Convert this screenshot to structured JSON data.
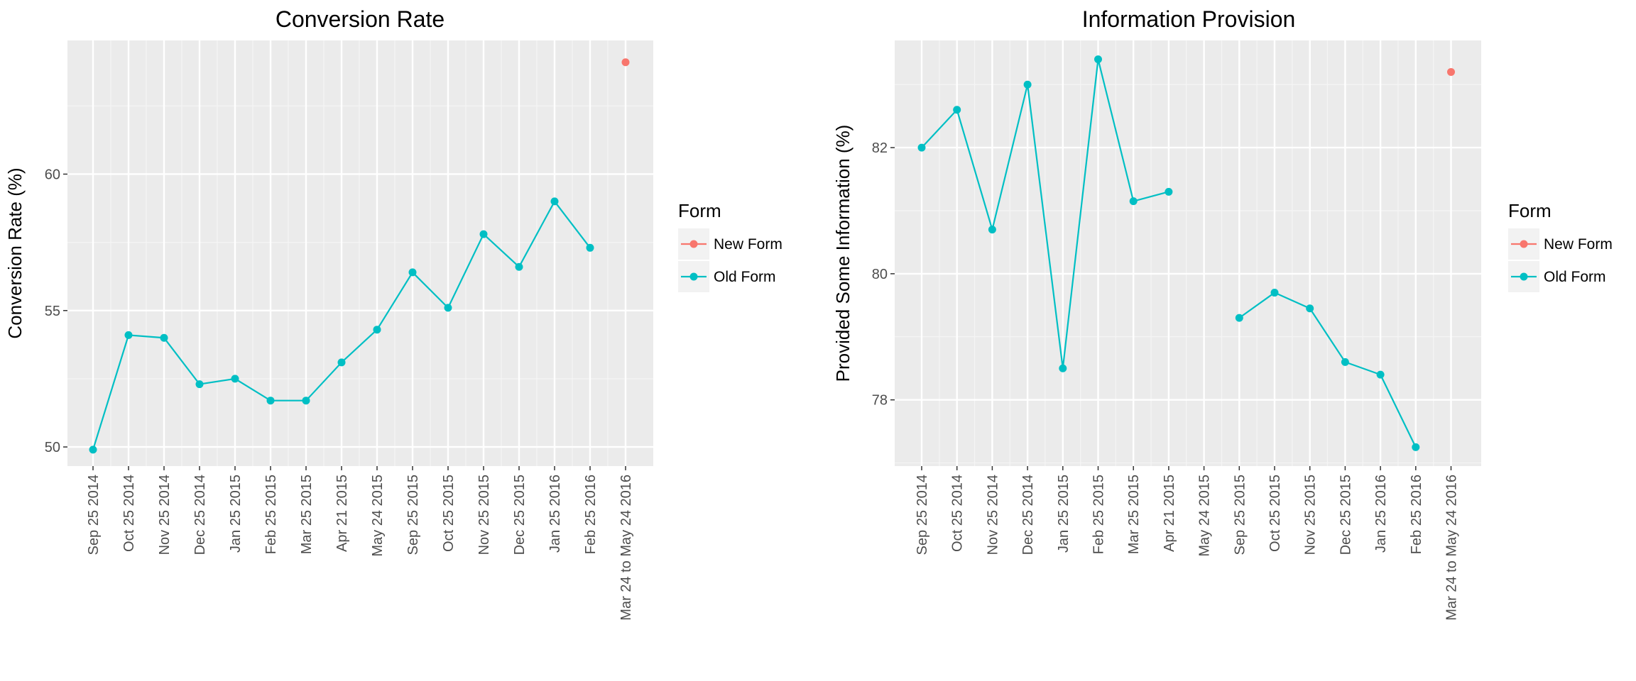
{
  "chart_data": [
    {
      "type": "line",
      "title": "Conversion Rate",
      "xlabel": "",
      "ylabel": "Conversion Rate (%)",
      "categories": [
        "Sep 25 2014",
        "Oct 25 2014",
        "Nov 25 2014",
        "Dec 25 2014",
        "Jan 25 2015",
        "Feb 25 2015",
        "Mar 25 2015",
        "Apr 21 2015",
        "May 24 2015",
        "Sep 25 2015",
        "Oct 25 2015",
        "Nov 25 2015",
        "Dec 25 2015",
        "Jan 25 2016",
        "Feb 25 2016",
        "Mar 24 to May 24 2016"
      ],
      "yticks": [
        50,
        55,
        60
      ],
      "ylim": [
        49.3,
        64.9
      ],
      "grid": true,
      "legend": {
        "title": "Form",
        "position": "right",
        "entries": [
          "New Form",
          "Old Form"
        ]
      },
      "series": [
        {
          "name": "New Form",
          "color": "#F8766D",
          "values": [
            null,
            null,
            null,
            null,
            null,
            null,
            null,
            null,
            null,
            null,
            null,
            null,
            null,
            null,
            null,
            64.1
          ]
        },
        {
          "name": "Old Form",
          "color": "#00BFC4",
          "values": [
            49.9,
            54.1,
            54.0,
            52.3,
            52.5,
            51.7,
            51.7,
            53.1,
            54.3,
            56.4,
            55.1,
            57.8,
            56.6,
            59.0,
            57.3,
            null
          ]
        }
      ]
    },
    {
      "type": "line",
      "title": "Information Provision",
      "xlabel": "",
      "ylabel": "Provided Some Information (%)",
      "categories": [
        "Sep 25 2014",
        "Oct 25 2014",
        "Nov 25 2014",
        "Dec 25 2014",
        "Jan 25 2015",
        "Feb 25 2015",
        "Mar 25 2015",
        "Apr 21 2015",
        "May 24 2015",
        "Sep 25 2015",
        "Oct 25 2015",
        "Nov 25 2015",
        "Dec 25 2015",
        "Jan 25 2016",
        "Feb 25 2016",
        "Mar 24 to May 24 2016"
      ],
      "yticks": [
        78,
        80,
        82
      ],
      "ylim": [
        76.95,
        83.7
      ],
      "grid": true,
      "legend": {
        "title": "Form",
        "position": "right",
        "entries": [
          "New Form",
          "Old Form"
        ]
      },
      "series": [
        {
          "name": "New Form",
          "color": "#F8766D",
          "values": [
            null,
            null,
            null,
            null,
            null,
            null,
            null,
            null,
            null,
            null,
            null,
            null,
            null,
            null,
            null,
            83.2
          ]
        },
        {
          "name": "Old Form",
          "color": "#00BFC4",
          "values": [
            82.0,
            82.6,
            80.7,
            83.0,
            78.5,
            83.4,
            81.15,
            81.3,
            null,
            79.3,
            79.7,
            79.45,
            78.6,
            78.4,
            77.25,
            null
          ]
        }
      ]
    }
  ]
}
